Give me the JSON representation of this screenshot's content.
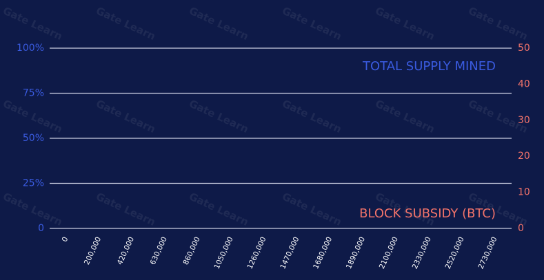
{
  "chart_data": {
    "type": "line",
    "watermark": "Gate Learn",
    "categories": [
      "0",
      "200,000",
      "420,000",
      "630,000",
      "860,000",
      "1050,000",
      "1260,000",
      "1470,000",
      "1680,000",
      "1890,000",
      "2100,000",
      "2330,000",
      "2520,000",
      "2730,000"
    ],
    "series": [
      {
        "name": "TOTAL SUPPLY MINED",
        "color": "#3a5be0",
        "values": [
          null,
          null,
          null,
          null,
          null,
          null,
          null,
          null,
          null,
          null,
          null,
          null,
          null,
          null
        ]
      },
      {
        "name": "BLOCK SUBSIDY (BTC)",
        "color": "#f2736a",
        "axis": "y2",
        "values": [
          null,
          null,
          null,
          null,
          null,
          null,
          null,
          null,
          null,
          null,
          null,
          null,
          null,
          null
        ]
      }
    ],
    "ylim": [
      0,
      100
    ],
    "yticks": [
      0,
      {
        "value": 25,
        "label": "25%"
      },
      {
        "value": 50,
        "label": "50%"
      },
      {
        "value": 75,
        "label": "75%"
      },
      {
        "value": 100,
        "label": "100%"
      }
    ],
    "y2lim": [
      0,
      50
    ],
    "y2ticks": [
      0,
      10,
      20,
      30,
      40,
      50
    ],
    "grid": true
  }
}
